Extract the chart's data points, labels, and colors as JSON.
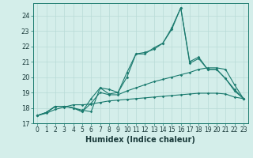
{
  "xlabel": "Humidex (Indice chaleur)",
  "x": [
    0,
    1,
    2,
    3,
    4,
    5,
    6,
    7,
    8,
    9,
    10,
    11,
    12,
    13,
    14,
    15,
    16,
    17,
    18,
    19,
    20,
    21,
    22,
    23
  ],
  "line1": [
    17.5,
    17.7,
    18.1,
    18.1,
    18.0,
    17.85,
    17.75,
    19.3,
    19.2,
    19.0,
    20.3,
    21.5,
    21.6,
    21.8,
    22.2,
    23.2,
    24.5,
    21.0,
    21.3,
    20.5,
    20.5,
    19.9,
    19.2,
    18.6
  ],
  "line2": [
    17.5,
    17.7,
    18.1,
    18.1,
    18.0,
    17.75,
    18.6,
    19.3,
    18.9,
    19.0,
    20.0,
    21.5,
    21.5,
    21.9,
    22.2,
    23.1,
    24.5,
    20.9,
    21.2,
    20.5,
    20.5,
    19.9,
    19.1,
    18.6
  ],
  "line3": [
    17.5,
    17.7,
    18.1,
    18.1,
    18.0,
    17.75,
    18.3,
    19.0,
    18.85,
    18.85,
    19.1,
    19.3,
    19.5,
    19.7,
    19.85,
    20.0,
    20.15,
    20.3,
    20.5,
    20.6,
    20.6,
    20.5,
    19.5,
    18.6
  ],
  "line4": [
    17.5,
    17.65,
    17.9,
    18.05,
    18.2,
    18.2,
    18.25,
    18.35,
    18.45,
    18.5,
    18.55,
    18.6,
    18.65,
    18.7,
    18.75,
    18.8,
    18.85,
    18.9,
    18.95,
    18.95,
    18.95,
    18.9,
    18.7,
    18.6
  ],
  "ylim": [
    17,
    24.8
  ],
  "yticks": [
    17,
    18,
    19,
    20,
    21,
    22,
    23,
    24
  ],
  "xticks": [
    0,
    1,
    2,
    3,
    4,
    5,
    6,
    7,
    8,
    9,
    10,
    11,
    12,
    13,
    14,
    15,
    16,
    17,
    18,
    19,
    20,
    21,
    22,
    23
  ],
  "line_color": "#1a7a6e",
  "bg_color": "#d4eeea",
  "grid_color": "#b8dbd6",
  "tick_fontsize": 5.5,
  "label_fontsize": 7
}
